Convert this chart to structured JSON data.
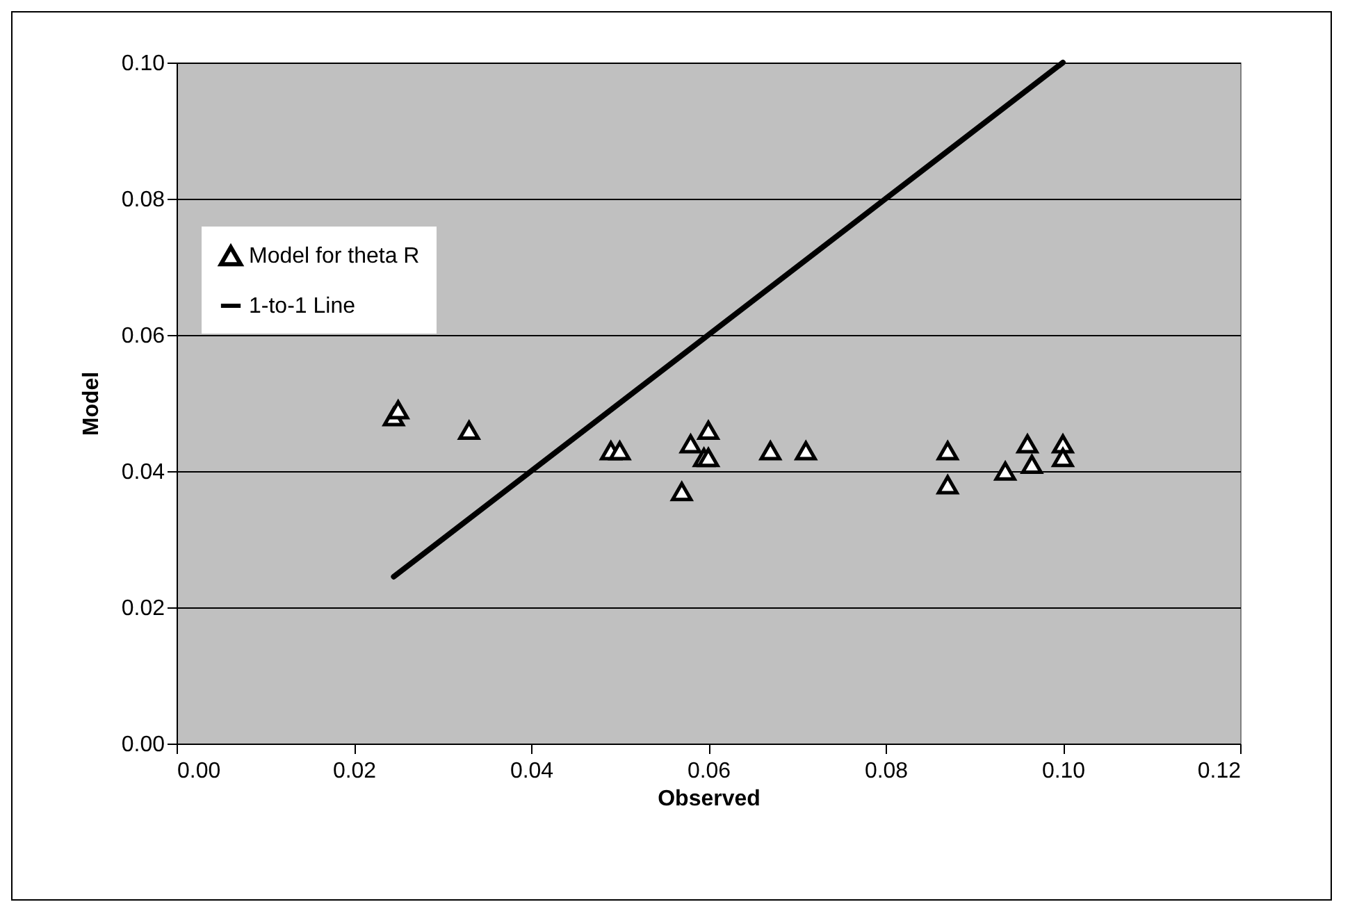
{
  "chart_data": {
    "type": "scatter",
    "xlabel": "Observed",
    "ylabel": "Model",
    "xlim": [
      0,
      0.12
    ],
    "xticks": [
      {
        "value": 0,
        "label": "0.00"
      },
      {
        "value": 0.02,
        "label": "0.02"
      },
      {
        "value": 0.04,
        "label": "0.04"
      },
      {
        "value": 0.06,
        "label": "0.06"
      },
      {
        "value": 0.08,
        "label": "0.08"
      },
      {
        "value": 0.1,
        "label": "0.10"
      },
      {
        "value": 0.12,
        "label": "0.12"
      }
    ],
    "ylim": [
      0,
      0.1
    ],
    "yticks": [
      {
        "value": 0,
        "label": "0.00"
      },
      {
        "value": 0.02,
        "label": "0.02"
      },
      {
        "value": 0.04,
        "label": "0.04"
      },
      {
        "value": 0.06,
        "label": "0.06"
      },
      {
        "value": 0.08,
        "label": "0.08"
      },
      {
        "value": 0.1,
        "label": "0.10"
      }
    ],
    "grid": "y",
    "legend": "top left",
    "series": [
      {
        "name": "Model for theta R",
        "marker": "triangle",
        "color": "#000000",
        "x": [
          0.0245,
          0.025,
          0.033,
          0.049,
          0.05,
          0.057,
          0.058,
          0.0595,
          0.06,
          0.06,
          0.067,
          0.071,
          0.087,
          0.087,
          0.0935,
          0.096,
          0.0965,
          0.1,
          0.1
        ],
        "values": [
          0.048,
          0.049,
          0.046,
          0.043,
          0.043,
          0.037,
          0.044,
          0.042,
          0.046,
          0.042,
          0.043,
          0.043,
          0.043,
          0.038,
          0.04,
          0.044,
          0.041,
          0.044,
          0.042
        ]
      },
      {
        "name": "1-to-1 Line",
        "type": "line",
        "marker": "none",
        "color": "#000000",
        "x": [
          0.0245,
          0.1
        ],
        "values": [
          0.0245,
          0.1
        ]
      }
    ]
  }
}
